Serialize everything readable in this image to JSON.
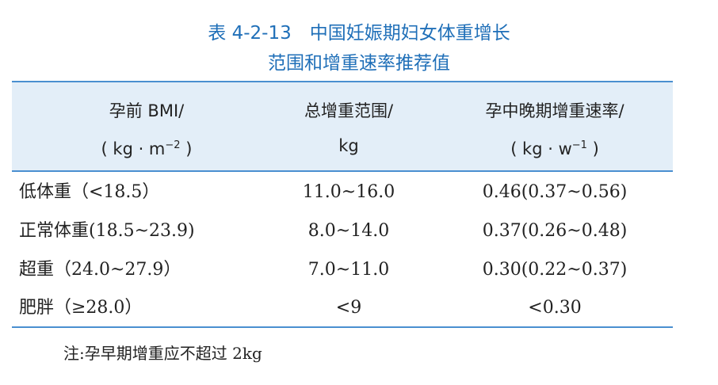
{
  "title": {
    "line1": "表 4-2-13　中国妊娠期妇女体重增长",
    "line2": "范围和增重速率推荐值"
  },
  "table": {
    "header": [
      {
        "line1": "孕前 BMI/",
        "line2": "( kg · m",
        "sup": "−2",
        "close": " )"
      },
      {
        "line1": "总增重范围/",
        "line2": "kg"
      },
      {
        "line1": "孕中晚期增重速率/",
        "line2": "( kg · w",
        "sup": "−1",
        "close": " )"
      }
    ],
    "rows": [
      [
        "低体重（<18.5）",
        "11.0~16.0",
        "0.46(0.37~0.56)"
      ],
      [
        "正常体重(18.5~23.9)",
        "8.0~14.0",
        "0.37(0.26~0.48)"
      ],
      [
        "超重（24.0~27.9）",
        "7.0~11.0",
        "0.30(0.22~0.37)"
      ],
      [
        "肥胖（≥28.0）",
        "<9",
        "<0.30"
      ]
    ]
  },
  "note": "注:孕早期增重应不超过 2kg"
}
